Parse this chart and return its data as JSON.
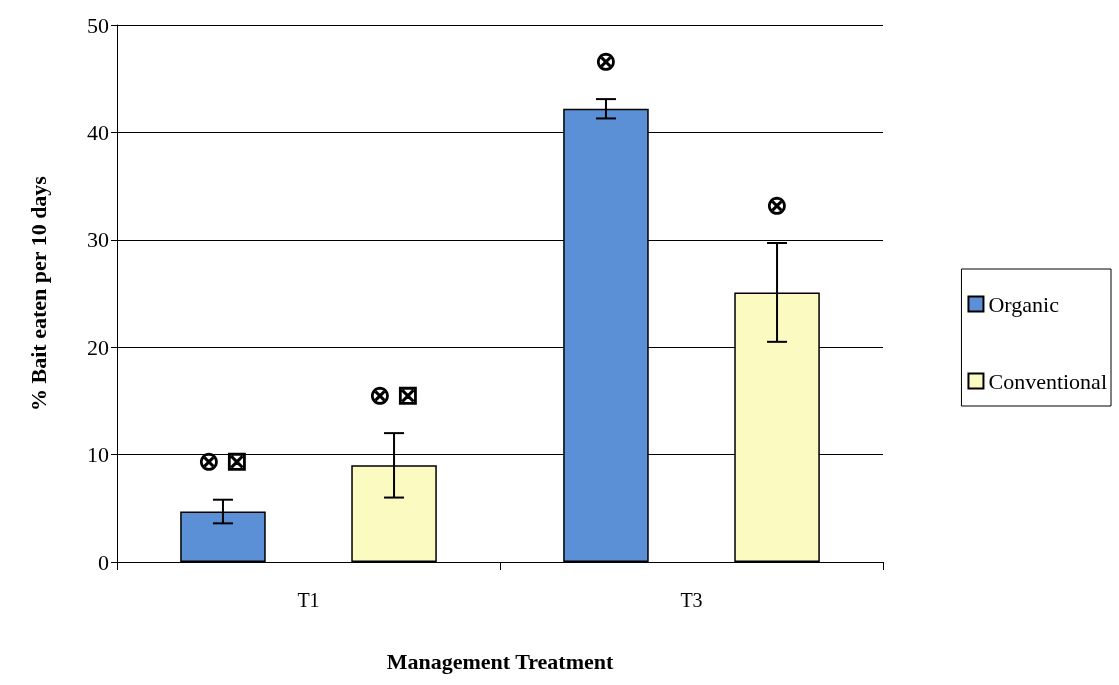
{
  "chart_data": {
    "type": "bar",
    "xlabel": "Management Treatment",
    "ylabel": "% Bait eaten per 10 days",
    "categories": [
      "T1",
      "T3"
    ],
    "series": [
      {
        "name": "Organic",
        "color": "#5b8fd6",
        "values": [
          4.7,
          42.2
        ],
        "errors": [
          1.1,
          0.9
        ]
      },
      {
        "name": "Conventional",
        "color": "#fbfac0",
        "values": [
          9.0,
          25.1
        ],
        "errors": [
          3.0,
          4.6
        ]
      }
    ],
    "ylim": [
      0,
      50
    ],
    "yticks": [
      0,
      10,
      20,
      30,
      40,
      50
    ],
    "grid": "y",
    "legend": "right",
    "annotations": [
      "⊗ ⊠",
      "⊗ ⊠",
      "⊗",
      "⊗"
    ]
  }
}
